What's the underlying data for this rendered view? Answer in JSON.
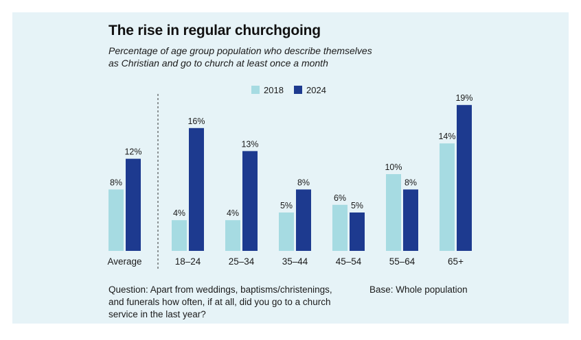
{
  "colors": {
    "background_panel": "#e6f3f7",
    "series_2018": "#a6dbe2",
    "series_2024": "#1d3a8f",
    "text": "#1a1a1a"
  },
  "chart_data": {
    "type": "bar",
    "title": "The rise in regular churchgoing",
    "subtitle_lines": [
      "Percentage of age group population who describe themselves",
      "as Christian and go to church at least once a month"
    ],
    "categories": [
      "Average",
      "18–24",
      "25–34",
      "35–44",
      "45–54",
      "55–64",
      "65+"
    ],
    "series": [
      {
        "name": "2018",
        "values": [
          8,
          4,
          4,
          5,
          6,
          10,
          14
        ],
        "labels": [
          "8%",
          "4%",
          "4%",
          "5%",
          "6%",
          "10%",
          "14%"
        ]
      },
      {
        "name": "2024",
        "values": [
          12,
          16,
          13,
          8,
          5,
          8,
          19
        ],
        "labels": [
          "12%",
          "16%",
          "13%",
          "8%",
          "5%",
          "8%",
          "19%"
        ]
      }
    ],
    "ylim": [
      0,
      20
    ],
    "legend_position": "top",
    "grid": false,
    "separator_after_first_category": true,
    "xlabel": "",
    "ylabel": ""
  },
  "notes": {
    "question_lines": [
      "Question: Apart from weddings, baptisms/christenings,",
      "and funerals how often, if at all, did you go to a church",
      "service in the last year?"
    ],
    "base": "Base: Whole population"
  }
}
